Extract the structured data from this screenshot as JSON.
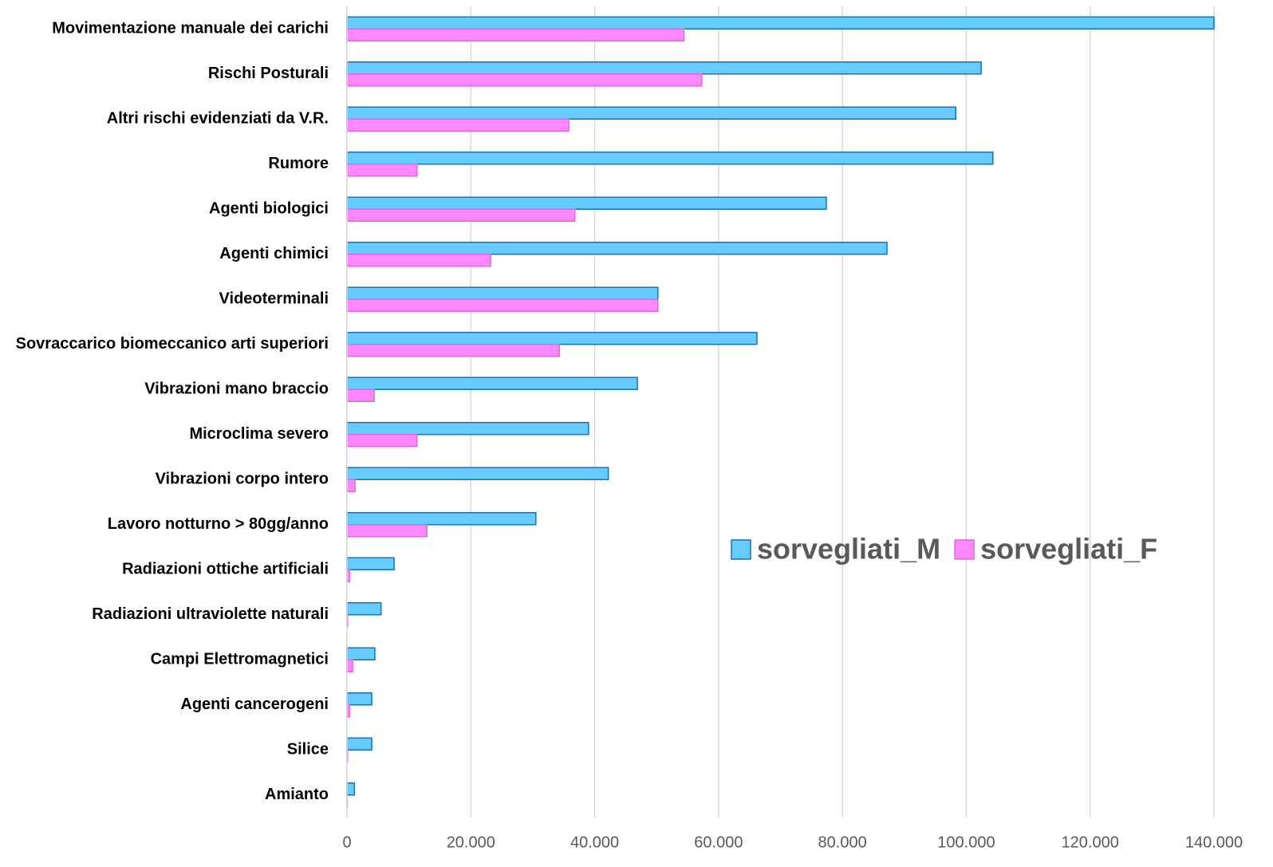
{
  "chart_data": {
    "type": "hbar",
    "categories": [
      "Movimentazione manuale dei carichi",
      "Rischi Posturali",
      "Altri rischi evidenziati da V.R.",
      "Rumore",
      "Agenti biologici",
      "Agenti chimici",
      "Videoterminali",
      "Sovraccarico biomeccanico arti superiori",
      "Vibrazioni mano braccio",
      "Microclima severo",
      "Vibrazioni corpo intero",
      "Lavoro notturno > 80gg/anno",
      "Radiazioni ottiche artificiali",
      "Radiazioni ultraviolette naturali",
      "Campi Elettromagnetici",
      "Agenti cancerogeni",
      "Silice",
      "Amianto"
    ],
    "series": [
      {
        "name": "sorvegliati_M",
        "color": "#66ccff",
        "stroke": "#1f6fb5",
        "values": [
          140000,
          102400,
          98300,
          104300,
          77400,
          87200,
          50200,
          66200,
          46900,
          39000,
          42200,
          30500,
          7600,
          5500,
          4500,
          4000,
          4000,
          1200
        ]
      },
      {
        "name": "sorvegliati_F",
        "color": "#ff88ff",
        "stroke": "#e066e0",
        "values": [
          54400,
          57300,
          35800,
          11300,
          36800,
          23200,
          50200,
          34300,
          4400,
          11300,
          1300,
          12900,
          400,
          100,
          900,
          400,
          100,
          50
        ]
      }
    ],
    "xlim": [
      0,
      140000
    ],
    "xticks": [
      0,
      {
        "value": 20000,
        "label": "20.000"
      },
      {
        "value": 40000,
        "label": "40.000"
      },
      {
        "value": 60000,
        "label": "60.000"
      },
      {
        "value": 80000,
        "label": "80.000"
      },
      {
        "value": 100000,
        "label": "100.000"
      },
      {
        "value": 120000,
        "label": "120.000"
      },
      {
        "value": 140000,
        "label": "140.000"
      }
    ],
    "grid": true,
    "legend": "right"
  }
}
